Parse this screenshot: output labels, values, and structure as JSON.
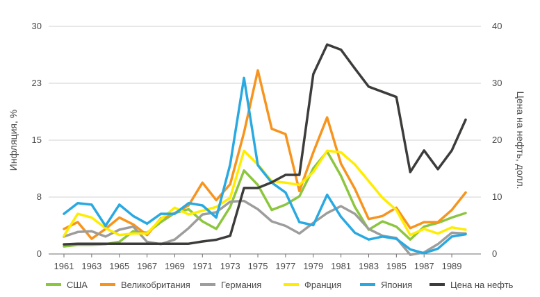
{
  "chart_data": {
    "type": "line",
    "title": "",
    "xlabel": "",
    "ylabel_left": "Инфляция, %",
    "ylabel_right": "Цена на нефть, долл.",
    "x": [
      1961,
      1962,
      1963,
      1964,
      1965,
      1966,
      1967,
      1968,
      1969,
      1970,
      1971,
      1972,
      1973,
      1974,
      1975,
      1976,
      1977,
      1978,
      1979,
      1980,
      1981,
      1982,
      1983,
      1984,
      1985,
      1986,
      1987,
      1988,
      1989,
      1990
    ],
    "x_tick_labels": [
      "1961",
      "1963",
      "1965",
      "1967",
      "1969",
      "1971",
      "1973",
      "1975",
      "1977",
      "1979",
      "1981",
      "1983",
      "1985",
      "1987",
      "1989"
    ],
    "ylim_left": [
      0,
      30
    ],
    "yticks_left": [
      "0",
      "8",
      "15",
      "23",
      "30"
    ],
    "ylim_right": [
      0,
      40
    ],
    "yticks_right": [
      "0",
      "10",
      "20",
      "30",
      "40"
    ],
    "grid": "horizontal",
    "legend_position": "bottom",
    "series": [
      {
        "name": "США",
        "axis": "left",
        "color": "#8cc63f",
        "values": [
          1.0,
          1.2,
          1.2,
          1.3,
          1.6,
          3.0,
          2.8,
          4.2,
          5.4,
          5.9,
          4.3,
          3.3,
          6.2,
          11.0,
          9.1,
          5.8,
          6.5,
          7.6,
          11.3,
          13.5,
          10.3,
          6.2,
          3.2,
          4.3,
          3.6,
          1.9,
          3.6,
          4.1,
          4.8,
          5.4
        ]
      },
      {
        "name": "Великобритания",
        "axis": "left",
        "color": "#f7941d",
        "values": [
          3.3,
          4.2,
          2.0,
          3.3,
          4.8,
          3.9,
          2.5,
          4.7,
          5.4,
          6.4,
          9.4,
          7.1,
          9.2,
          16.0,
          24.2,
          16.5,
          15.8,
          8.3,
          13.4,
          18.0,
          11.9,
          8.6,
          4.6,
          5.0,
          6.1,
          3.4,
          4.2,
          4.2,
          5.8,
          8.1
        ]
      },
      {
        "name": "Германия",
        "axis": "left",
        "color": "#9d9d9c",
        "values": [
          2.3,
          2.9,
          3.0,
          2.3,
          3.2,
          3.6,
          1.6,
          1.3,
          1.9,
          3.4,
          5.2,
          5.5,
          6.9,
          7.0,
          5.9,
          4.3,
          3.7,
          2.7,
          4.1,
          5.4,
          6.3,
          5.3,
          3.3,
          2.4,
          2.1,
          -0.1,
          0.2,
          1.3,
          2.8,
          2.7
        ]
      },
      {
        "name": "Франция",
        "axis": "left",
        "color": "#ffed00",
        "values": [
          2.4,
          5.3,
          4.8,
          3.4,
          2.5,
          2.7,
          2.7,
          4.6,
          6.1,
          5.2,
          5.7,
          6.2,
          7.4,
          13.6,
          11.8,
          9.6,
          9.4,
          9.1,
          10.8,
          13.6,
          13.4,
          11.8,
          9.6,
          7.4,
          5.8,
          2.5,
          3.3,
          2.7,
          3.5,
          3.2
        ]
      },
      {
        "name": "Япония",
        "axis": "left",
        "color": "#29a9e1",
        "values": [
          5.3,
          6.7,
          6.5,
          3.7,
          6.5,
          5.0,
          4.0,
          5.3,
          5.3,
          6.7,
          6.4,
          4.8,
          11.8,
          23.2,
          11.7,
          9.4,
          8.1,
          4.2,
          3.8,
          7.8,
          4.9,
          2.8,
          1.9,
          2.3,
          2.0,
          0.6,
          0.1,
          0.7,
          2.3,
          2.6
        ]
      },
      {
        "name": "Цена на нефть",
        "axis": "right",
        "color": "#3c3c3b",
        "values": [
          1.7,
          1.8,
          1.8,
          1.8,
          1.8,
          1.8,
          1.8,
          1.8,
          1.8,
          1.8,
          2.2,
          2.5,
          3.2,
          11.6,
          11.6,
          12.6,
          13.9,
          13.9,
          31.6,
          36.8,
          35.9,
          32.6,
          29.4,
          28.5,
          27.6,
          14.4,
          18.2,
          14.9,
          18.2,
          23.6
        ]
      }
    ]
  }
}
